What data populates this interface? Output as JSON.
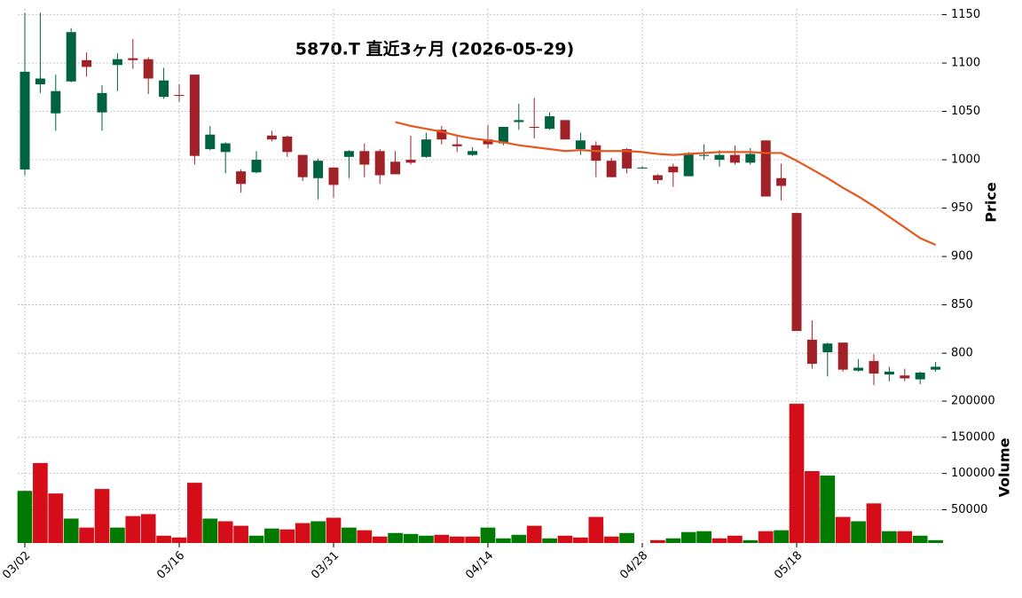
{
  "chart_data": [
    {
      "type": "candlestick",
      "title": "5870.T 直近3ヶ月 (2026-05-29)",
      "ylabel": "Price",
      "categories": [
        "03/02",
        null,
        null,
        null,
        null,
        null,
        null,
        null,
        null,
        null,
        "03/16",
        null,
        null,
        null,
        null,
        null,
        null,
        null,
        null,
        null,
        "03/31",
        null,
        null,
        null,
        null,
        null,
        null,
        null,
        null,
        null,
        "04/14",
        null,
        null,
        null,
        null,
        null,
        null,
        null,
        null,
        null,
        "04/28",
        null,
        null,
        null,
        null,
        null,
        null,
        null,
        null,
        null,
        "05/18",
        null,
        null,
        null,
        null,
        null,
        null,
        null,
        null,
        null
      ],
      "open": [
        990,
        1078,
        1048,
        1081,
        1103,
        1049,
        1098,
        1105,
        1104,
        1065,
        1067,
        1088,
        1011,
        1008,
        988,
        987,
        1025,
        1024,
        1005,
        981,
        992,
        1003,
        1009,
        1009,
        998,
        1000,
        1003,
        1031,
        1016,
        1005,
        1021,
        1017,
        1039,
        1034,
        1032,
        1041,
        1011,
        1015,
        999,
        1011,
        991,
        984,
        993,
        983,
        1004,
        1000,
        1005,
        997,
        1020,
        981,
        945,
        814,
        801,
        811,
        782,
        792,
        778,
        777,
        773,
        783
      ],
      "high": [
        1152,
        1152,
        1088,
        1136,
        1111,
        1077,
        1110,
        1125,
        1106,
        1095,
        1078,
        1088,
        1035,
        1018,
        990,
        1009,
        1030,
        1025,
        1005,
        1001,
        992,
        1010,
        1017,
        1011,
        1009,
        1025,
        1028,
        1035,
        1025,
        1013,
        1036,
        1034,
        1058,
        1064,
        1049,
        1041,
        1028,
        1019,
        1002,
        1012,
        993,
        985,
        996,
        1008,
        1016,
        1010,
        1015,
        1012,
        1020,
        996,
        945,
        834,
        811,
        811,
        794,
        799,
        786,
        784,
        781,
        791
      ],
      "low": [
        984,
        1069,
        1030,
        1080,
        1086,
        1030,
        1071,
        1094,
        1068,
        1063,
        1060,
        995,
        1010,
        986,
        966,
        986,
        1019,
        1003,
        978,
        959,
        961,
        981,
        982,
        975,
        985,
        995,
        1002,
        1016,
        1008,
        1004,
        1012,
        1015,
        1031,
        1022,
        1031,
        1021,
        1005,
        982,
        982,
        986,
        991,
        975,
        972,
        983,
        1000,
        993,
        995,
        995,
        962,
        958,
        823,
        784,
        776,
        781,
        781,
        767,
        771,
        771,
        768,
        781
      ],
      "close": [
        1091,
        1084,
        1071,
        1132,
        1096,
        1069,
        1104,
        1103,
        1084,
        1082,
        1066,
        1004,
        1026,
        1017,
        975,
        1000,
        1021,
        1008,
        982,
        999,
        974,
        1009,
        995,
        984,
        985,
        997,
        1021,
        1021,
        1014,
        1009,
        1016,
        1034,
        1041,
        1033,
        1045,
        1021,
        1020,
        999,
        982,
        991,
        992,
        979,
        987,
        1007,
        1005,
        1005,
        997,
        1006,
        962,
        973,
        823,
        789,
        810,
        783,
        785,
        779,
        781,
        774,
        780,
        786
      ],
      "up_color": "#006340",
      "down_color": "#a02128",
      "line": {
        "color": "#e8561c",
        "values": [
          null,
          null,
          null,
          null,
          null,
          null,
          null,
          null,
          null,
          null,
          null,
          null,
          null,
          null,
          null,
          null,
          null,
          null,
          null,
          null,
          null,
          null,
          null,
          null,
          1039,
          1035,
          1032,
          1029,
          1025,
          1022,
          1020,
          1018,
          1015,
          1013,
          1011,
          1009,
          1010,
          1009,
          1009,
          1009,
          1008,
          1006,
          1005,
          1006,
          1007,
          1008,
          1008,
          1008,
          1007,
          1007,
          999,
          990,
          981,
          971,
          962,
          952,
          941,
          930,
          919,
          912
        ]
      },
      "ylim": [
        757,
        1156
      ],
      "yticks": [
        800,
        850,
        900,
        950,
        1000,
        1050,
        1100,
        1150
      ],
      "grid": true
    },
    {
      "type": "bar",
      "ylabel": "Volume",
      "values": [
        76000,
        114500,
        72400,
        37700,
        25300,
        78600,
        25300,
        41200,
        43900,
        14100,
        11600,
        87200,
        37700,
        34000,
        27800,
        14100,
        24000,
        22800,
        31500,
        34000,
        38900,
        25300,
        21600,
        12900,
        17800,
        16500,
        14100,
        15300,
        12900,
        12900,
        25300,
        10400,
        15300,
        27800,
        10400,
        14100,
        11600,
        40000,
        12900,
        17800,
        4000,
        7900,
        10400,
        19100,
        20300,
        10400,
        14100,
        7900,
        20300,
        21600,
        196300,
        103300,
        97100,
        40000,
        34000,
        58700,
        20300,
        20300,
        14100,
        7900
      ],
      "colors": [
        "#007a00",
        "#d50d18",
        "#d50d18",
        "#007a00",
        "#d50d18",
        "#d50d18",
        "#007a00",
        "#d50d18",
        "#d50d18",
        "#d50d18",
        "#d50d18",
        "#d50d18",
        "#007a00",
        "#d50d18",
        "#d50d18",
        "#007a00",
        "#007a00",
        "#d50d18",
        "#d50d18",
        "#007a00",
        "#d50d18",
        "#007a00",
        "#d50d18",
        "#d50d18",
        "#007a00",
        "#007a00",
        "#007a00",
        "#d50d18",
        "#d50d18",
        "#d50d18",
        "#007a00",
        "#007a00",
        "#007a00",
        "#d50d18",
        "#007a00",
        "#d50d18",
        "#d50d18",
        "#d50d18",
        "#d50d18",
        "#007a00",
        "#007a00",
        "#d50d18",
        "#007a00",
        "#007a00",
        "#007a00",
        "#d50d18",
        "#d50d18",
        "#007a00",
        "#d50d18",
        "#007a00",
        "#d50d18",
        "#d50d18",
        "#007a00",
        "#d50d18",
        "#007a00",
        "#d50d18",
        "#007a00",
        "#d50d18",
        "#007a00",
        "#007a00"
      ],
      "ylim": [
        4000,
        205000
      ],
      "yticks": [
        50000,
        100000,
        150000,
        200000
      ],
      "grid": true
    }
  ]
}
